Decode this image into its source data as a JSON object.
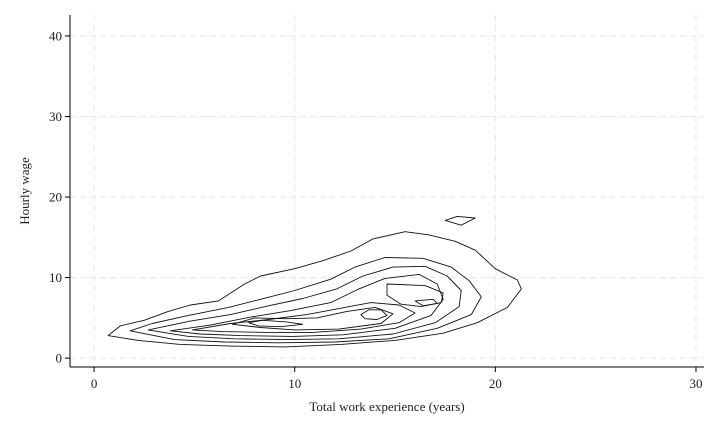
{
  "chart_data": {
    "type": "contour",
    "xlabel": "Total work experience (years)",
    "ylabel": "Hourly wage",
    "xlim": [
      -1.2,
      30.4
    ],
    "ylim": [
      -1.1,
      42.6
    ],
    "x_ticks": [
      0,
      10,
      20,
      30
    ],
    "y_ticks": [
      0,
      10,
      20,
      30,
      40
    ],
    "grid": true,
    "contours": [
      {
        "name": "contour-level-1",
        "points": [
          [
            0.7,
            2.8
          ],
          [
            1.3,
            4.0
          ],
          [
            2.5,
            4.7
          ],
          [
            3.7,
            5.8
          ],
          [
            4.8,
            6.6
          ],
          [
            6.2,
            7.1
          ],
          [
            7.5,
            9.2
          ],
          [
            8.3,
            10.2
          ],
          [
            10.0,
            11.1
          ],
          [
            11.4,
            12.1
          ],
          [
            12.8,
            13.3
          ],
          [
            13.9,
            14.8
          ],
          [
            15.5,
            15.7
          ],
          [
            16.7,
            15.3
          ],
          [
            18.0,
            14.5
          ],
          [
            19.0,
            13.4
          ],
          [
            20.0,
            11.1
          ],
          [
            21.1,
            9.7
          ],
          [
            21.3,
            8.6
          ],
          [
            20.6,
            6.3
          ],
          [
            19.1,
            4.4
          ],
          [
            17.4,
            3.1
          ],
          [
            15.0,
            2.2
          ],
          [
            12.3,
            1.7
          ],
          [
            9.5,
            1.4
          ],
          [
            6.8,
            1.5
          ],
          [
            4.3,
            1.7
          ],
          [
            2.2,
            2.2
          ],
          [
            0.7,
            2.8
          ]
        ]
      },
      {
        "name": "contour-level-2",
        "points": [
          [
            1.8,
            3.4
          ],
          [
            2.9,
            4.3
          ],
          [
            4.7,
            5.3
          ],
          [
            6.7,
            6.3
          ],
          [
            8.3,
            7.3
          ],
          [
            10.0,
            8.4
          ],
          [
            11.8,
            9.8
          ],
          [
            13.0,
            11.3
          ],
          [
            14.5,
            12.5
          ],
          [
            16.4,
            12.4
          ],
          [
            17.8,
            11.3
          ],
          [
            18.7,
            9.6
          ],
          [
            19.3,
            7.6
          ],
          [
            18.8,
            5.4
          ],
          [
            17.1,
            3.7
          ],
          [
            14.7,
            2.4
          ],
          [
            12.0,
            2.0
          ],
          [
            9.2,
            1.9
          ],
          [
            6.5,
            2.0
          ],
          [
            4.0,
            2.3
          ],
          [
            1.8,
            3.4
          ]
        ]
      },
      {
        "name": "contour-level-3",
        "points": [
          [
            2.7,
            3.5
          ],
          [
            4.8,
            4.6
          ],
          [
            6.8,
            5.4
          ],
          [
            8.7,
            6.5
          ],
          [
            10.4,
            7.4
          ],
          [
            12.1,
            8.6
          ],
          [
            13.4,
            10.2
          ],
          [
            14.9,
            11.3
          ],
          [
            16.5,
            11.4
          ],
          [
            17.6,
            10.2
          ],
          [
            18.3,
            8.4
          ],
          [
            18.2,
            6.4
          ],
          [
            17.0,
            4.4
          ],
          [
            14.9,
            3.0
          ],
          [
            12.2,
            2.4
          ],
          [
            9.6,
            2.3
          ],
          [
            7.0,
            2.4
          ],
          [
            4.7,
            2.7
          ],
          [
            2.7,
            3.5
          ]
        ]
      },
      {
        "name": "contour-level-4",
        "points": [
          [
            3.8,
            3.4
          ],
          [
            5.8,
            4.1
          ],
          [
            7.8,
            5.1
          ],
          [
            9.8,
            5.9
          ],
          [
            11.8,
            6.9
          ],
          [
            13.2,
            8.6
          ],
          [
            14.5,
            9.9
          ],
          [
            16.2,
            10.4
          ],
          [
            17.1,
            9.2
          ],
          [
            17.4,
            7.3
          ],
          [
            16.8,
            5.3
          ],
          [
            15.0,
            3.7
          ],
          [
            12.4,
            2.9
          ],
          [
            9.9,
            2.7
          ],
          [
            7.3,
            2.8
          ],
          [
            5.3,
            3.0
          ],
          [
            3.8,
            3.4
          ]
        ]
      },
      {
        "name": "contour-level-5",
        "points": [
          [
            4.9,
            3.5
          ],
          [
            6.8,
            4.3
          ],
          [
            8.7,
            4.8
          ],
          [
            10.6,
            5.4
          ],
          [
            12.3,
            6.2
          ],
          [
            13.8,
            6.9
          ],
          [
            15.2,
            6.6
          ],
          [
            16.0,
            5.6
          ],
          [
            15.2,
            4.4
          ],
          [
            13.3,
            3.6
          ],
          [
            10.9,
            3.2
          ],
          [
            8.5,
            3.2
          ],
          [
            6.4,
            3.3
          ],
          [
            4.9,
            3.5
          ]
        ]
      },
      {
        "name": "contour-level-6",
        "points": [
          [
            6.9,
            4.2
          ],
          [
            8.0,
            5.0
          ],
          [
            9.6,
            4.9
          ],
          [
            11.1,
            5.0
          ],
          [
            12.6,
            5.8
          ],
          [
            14.0,
            6.3
          ],
          [
            14.9,
            5.5
          ],
          [
            14.3,
            4.3
          ],
          [
            12.2,
            3.6
          ],
          [
            10.0,
            3.5
          ],
          [
            8.3,
            3.8
          ],
          [
            6.9,
            4.2
          ]
        ]
      },
      {
        "name": "contour-level-7",
        "points": [
          [
            7.7,
            4.4
          ],
          [
            8.4,
            4.7
          ],
          [
            9.6,
            4.5
          ],
          [
            10.4,
            4.2
          ],
          [
            9.3,
            3.9
          ],
          [
            8.2,
            4.0
          ],
          [
            7.7,
            4.4
          ]
        ]
      },
      {
        "name": "contour-level-8",
        "points": [
          [
            13.3,
            5.4
          ],
          [
            13.7,
            6.0
          ],
          [
            14.3,
            6.0
          ],
          [
            14.6,
            5.3
          ],
          [
            14.1,
            4.8
          ],
          [
            13.5,
            4.9
          ],
          [
            13.3,
            5.4
          ]
        ]
      },
      {
        "name": "contour-level-9",
        "points": [
          [
            16.0,
            7.1
          ],
          [
            16.9,
            7.3
          ],
          [
            17.1,
            6.8
          ],
          [
            16.4,
            6.5
          ],
          [
            16.0,
            7.1
          ]
        ]
      },
      {
        "name": "contour-level-10",
        "points": [
          [
            14.6,
            9.2
          ],
          [
            16.5,
            9.0
          ],
          [
            17.4,
            8.1
          ],
          [
            17.3,
            6.9
          ],
          [
            16.3,
            6.4
          ],
          [
            15.3,
            6.7
          ],
          [
            14.6,
            7.8
          ],
          [
            14.6,
            9.2
          ]
        ]
      },
      {
        "name": "contour-level-11",
        "points": [
          [
            17.5,
            17.1
          ],
          [
            18.1,
            17.6
          ],
          [
            19.0,
            17.4
          ],
          [
            18.3,
            16.5
          ],
          [
            17.5,
            17.1
          ]
        ]
      }
    ]
  }
}
